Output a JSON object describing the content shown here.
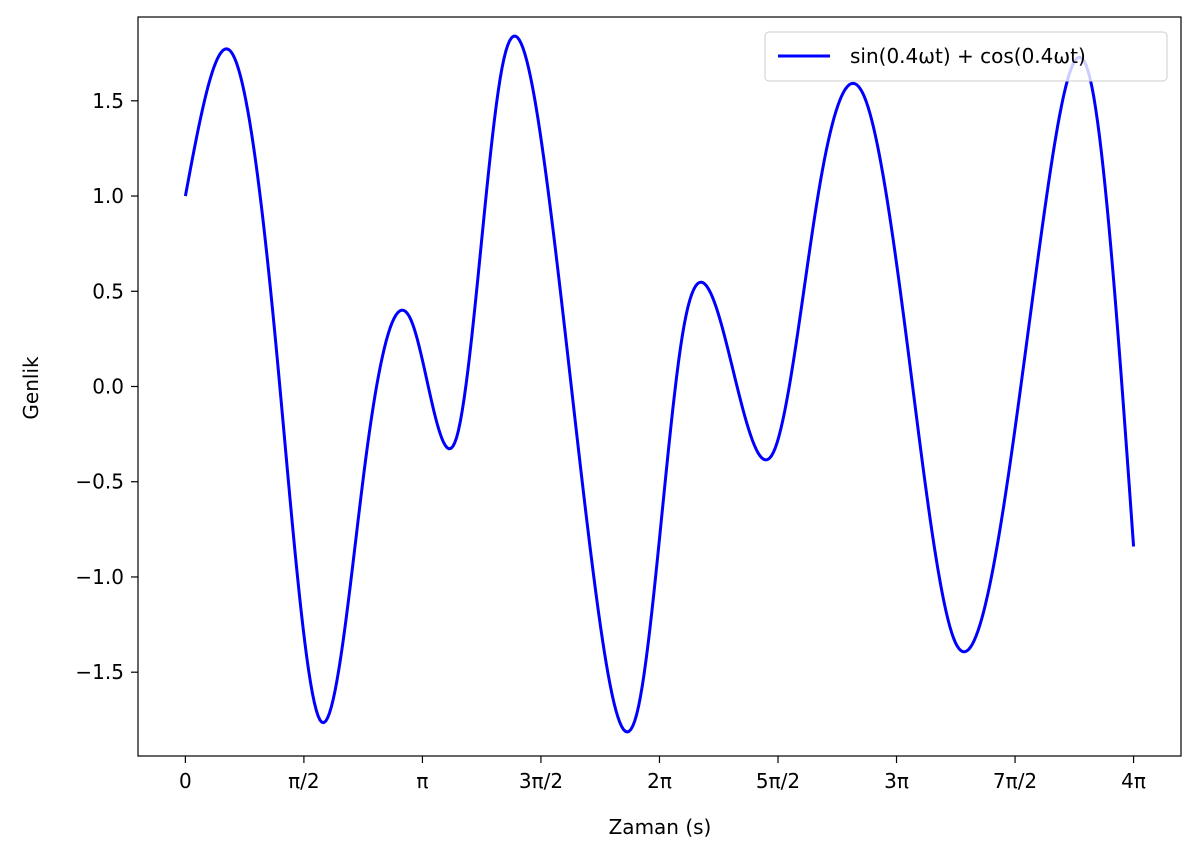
{
  "chart_data": {
    "type": "line",
    "title": "",
    "xlabel": "Zaman (s)",
    "ylabel": "Genlik",
    "xlim": [
      -0.628,
      13.195
    ],
    "ylim": [
      -1.94,
      1.94
    ],
    "grid": false,
    "legend_position": "top-right",
    "x_ticks": [
      {
        "value": 0,
        "label": "0"
      },
      {
        "value": 1.5708,
        "label": "π/2"
      },
      {
        "value": 3.1416,
        "label": "π"
      },
      {
        "value": 4.7124,
        "label": "3π/2"
      },
      {
        "value": 6.2832,
        "label": "2π"
      },
      {
        "value": 7.854,
        "label": "5π/2"
      },
      {
        "value": 9.4248,
        "label": "3π"
      },
      {
        "value": 10.9956,
        "label": "7π/2"
      },
      {
        "value": 12.5664,
        "label": "4π"
      }
    ],
    "y_ticks": [
      {
        "value": 1.5,
        "label": "1.5"
      },
      {
        "value": 1.0,
        "label": "1.0"
      },
      {
        "value": 0.5,
        "label": "0.5"
      },
      {
        "value": 0.0,
        "label": "0.0"
      },
      {
        "value": -0.5,
        "label": "−0.5"
      },
      {
        "value": -1.0,
        "label": "−1.0"
      },
      {
        "value": -1.5,
        "label": "−1.5"
      }
    ],
    "series": [
      {
        "name": "sin(0.4ωt) + cos(0.4ωt)",
        "color": "#0000ff",
        "x": [
          0,
          0.6,
          1.2,
          1.8,
          2.4,
          3.0,
          3.6,
          4.2,
          4.8,
          5.4,
          6.0,
          6.6,
          7.2,
          7.8,
          8.4,
          9.0,
          9.6,
          10.2,
          10.8,
          11.4,
          12.0,
          12.5664
        ],
        "y": [
          1.0,
          1.76,
          0.22,
          -1.76,
          -0.35,
          0.34,
          -0.26,
          1.68,
          1.05,
          -0.96,
          -1.69,
          0.3,
          0.18,
          -0.34,
          1.04,
          1.52,
          0.12,
          -1.34,
          -0.74,
          0.96,
          1.6,
          -0.84
        ]
      }
    ]
  }
}
